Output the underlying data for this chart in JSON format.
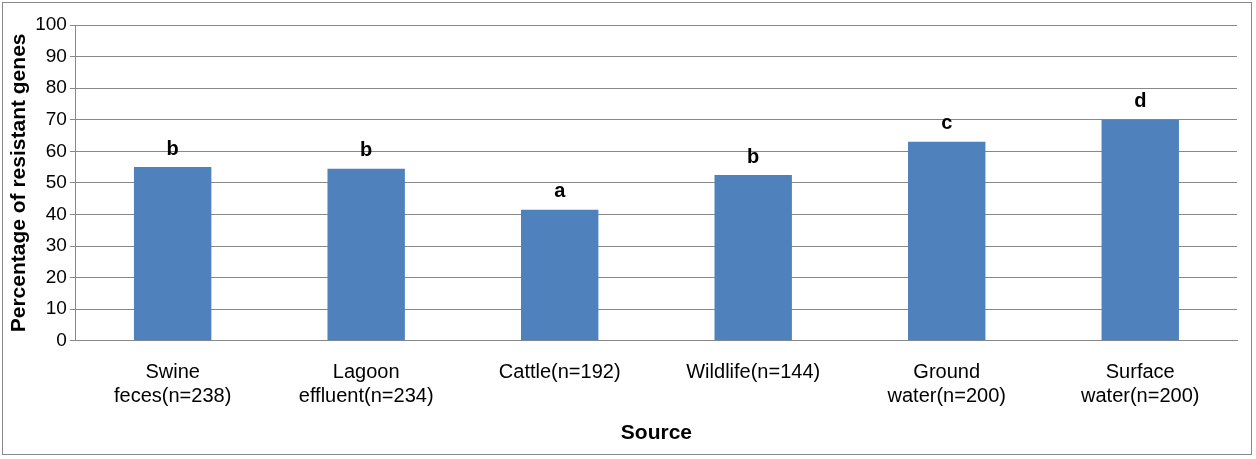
{
  "chart_data": {
    "type": "bar",
    "xlabel": "Source",
    "ylabel": "Percentage of resistant genes",
    "categories": [
      "Swine feces(n=238)",
      "Lagoon effluent(n=234)",
      "Cattle(n=192)",
      "Wildlife(n=144)",
      "Ground water(n=200)",
      "Surface water(n=200)"
    ],
    "values": [
      55,
      54.5,
      41.5,
      52.5,
      63,
      70
    ],
    "color": "#4f81bd",
    "ylim": [
      0,
      100
    ],
    "yticks": [
      0,
      10,
      20,
      30,
      40,
      50,
      60,
      70,
      80,
      90,
      100
    ],
    "grid": "y",
    "legend": false,
    "annotations": [
      {
        "text": "b",
        "x": "Swine feces(n=238)",
        "y": 55
      },
      {
        "text": "b",
        "x": "Lagoon effluent(n=234)",
        "y": 54.5
      },
      {
        "text": "a",
        "x": "Cattle(n=192)",
        "y": 41.5
      },
      {
        "text": "b",
        "x": "Wildlife(n=144)",
        "y": 52.5
      },
      {
        "text": "c",
        "x": "Ground water(n=200)",
        "y": 63
      },
      {
        "text": "d",
        "x": "Surface water(n=200)",
        "y": 70
      }
    ]
  }
}
